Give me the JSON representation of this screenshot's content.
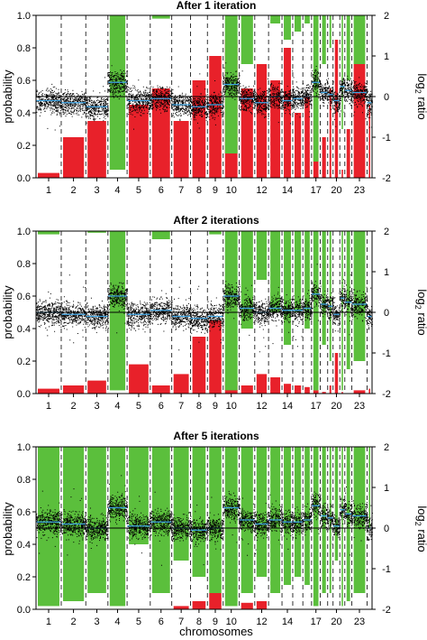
{
  "chart_data": [
    {
      "type": "scatter",
      "title": "After 1 iteration",
      "xlabel": "",
      "ylabel": "probability",
      "ylabel_right": "log2 ratio",
      "ylabel_right_base": "log",
      "ylabel_right_sub": "2",
      "ylabel_right_rest": " ratio",
      "ylim": [
        0,
        1
      ],
      "ylim_right": [
        -2,
        2
      ],
      "y_ticks": [
        "0.0",
        "0.2",
        "0.4",
        "0.6",
        "0.8",
        "1.0"
      ],
      "y_ticks_right": [
        "-2",
        "-1",
        "0",
        "1",
        "2"
      ],
      "x_ticks": [
        "1",
        "2",
        "3",
        "4",
        "5",
        "6",
        "7",
        "8",
        "9",
        "10",
        "12",
        "14",
        "17",
        "20",
        "23"
      ],
      "colors": {
        "loss": "#e8212a",
        "gain": "#5bbf3c",
        "points": "#000000",
        "segments": "#3ea2e0"
      },
      "loss_probability": [
        0.03,
        0.25,
        0.35,
        0.0,
        0.45,
        0.55,
        0.35,
        0.6,
        0.75,
        0.85,
        0.55,
        0.7,
        0.6,
        0.8,
        0.4,
        0.5,
        0.35,
        0.25,
        0.55,
        0.85,
        0.05,
        0.3,
        0.7,
        0.45
      ],
      "gain_probability": [
        0.0,
        0.0,
        0.0,
        0.95,
        0.0,
        0.02,
        0.0,
        0.0,
        0.0,
        0.85,
        0.3,
        0.0,
        0.05,
        0.15,
        0.1,
        0.05,
        0.9,
        0.3,
        0.2,
        0.0,
        0.7,
        0.4,
        0.3,
        0.0
      ],
      "segment_log2_ratio": [
        -0.1,
        -0.15,
        -0.25,
        0.35,
        -0.1,
        -0.05,
        -0.2,
        -0.25,
        -0.2,
        0.3,
        -0.05,
        -0.15,
        0.0,
        -0.1,
        -0.05,
        0.0,
        0.35,
        0.1,
        0.05,
        -0.1,
        0.25,
        0.15,
        0.1,
        -0.15
      ]
    },
    {
      "type": "scatter",
      "title": "After 2 iterations",
      "xlabel": "",
      "ylabel": "probability",
      "ylabel_right": "log2 ratio",
      "ylabel_right_base": "log",
      "ylabel_right_sub": "2",
      "ylabel_right_rest": " ratio",
      "ylim": [
        0,
        1
      ],
      "ylim_right": [
        -2,
        2
      ],
      "y_ticks": [
        "0.0",
        "0.2",
        "0.4",
        "0.6",
        "0.8",
        "1.0"
      ],
      "y_ticks_right": [
        "-2",
        "-1",
        "0",
        "1",
        "2"
      ],
      "x_ticks": [
        "1",
        "2",
        "3",
        "4",
        "5",
        "6",
        "7",
        "8",
        "9",
        "10",
        "12",
        "14",
        "17",
        "20",
        "23"
      ],
      "colors": {
        "loss": "#e8212a",
        "gain": "#5bbf3c",
        "points": "#000000",
        "segments": "#3ea2e0"
      },
      "loss_probability": [
        0.03,
        0.05,
        0.08,
        0.0,
        0.18,
        0.05,
        0.12,
        0.35,
        0.45,
        0.08,
        0.05,
        0.12,
        0.1,
        0.06,
        0.05,
        0.04,
        0.02,
        0.01,
        0.05,
        0.25,
        0.01,
        0.0,
        0.02,
        0.03
      ],
      "gain_probability": [
        0.02,
        0.0,
        0.01,
        0.98,
        0.0,
        0.05,
        0.0,
        0.0,
        0.02,
        0.98,
        0.6,
        0.3,
        0.5,
        0.7,
        0.5,
        0.6,
        0.98,
        0.7,
        0.8,
        0.0,
        0.98,
        0.85,
        0.8,
        0.0
      ],
      "segment_log2_ratio": [
        0.0,
        -0.05,
        -0.1,
        0.4,
        -0.05,
        0.05,
        -0.1,
        -0.15,
        -0.1,
        0.4,
        0.1,
        0.0,
        0.1,
        0.05,
        0.05,
        0.1,
        0.45,
        0.2,
        0.15,
        -0.05,
        0.35,
        0.25,
        0.2,
        -0.1
      ]
    },
    {
      "type": "scatter",
      "title": "After 5 iterations",
      "xlabel": "chromosomes",
      "ylabel": "probability",
      "ylabel_right": "log2 ratio",
      "ylabel_right_base": "log",
      "ylabel_right_sub": "2",
      "ylabel_right_rest": " ratio",
      "ylim": [
        0,
        1
      ],
      "ylim_right": [
        -2,
        2
      ],
      "y_ticks": [
        "0.0",
        "0.2",
        "0.4",
        "0.6",
        "0.8",
        "1.0"
      ],
      "y_ticks_right": [
        "-2",
        "-1",
        "0",
        "1",
        "2"
      ],
      "x_ticks": [
        "1",
        "2",
        "3",
        "4",
        "5",
        "6",
        "7",
        "8",
        "9",
        "10",
        "12",
        "14",
        "17",
        "20",
        "23"
      ],
      "colors": {
        "loss": "#e8212a",
        "gain": "#5bbf3c",
        "points": "#000000",
        "segments": "#3ea2e0"
      },
      "loss_probability": [
        0.0,
        0.0,
        0.0,
        0.0,
        0.0,
        0.0,
        0.02,
        0.05,
        0.1,
        0.0,
        0.04,
        0.05,
        0.0,
        0.0,
        0.0,
        0.0,
        0.0,
        0.0,
        0.0,
        0.0,
        0.0,
        0.0,
        0.0,
        0.0
      ],
      "gain_probability": [
        0.98,
        0.95,
        0.9,
        0.98,
        0.6,
        0.9,
        0.7,
        0.8,
        0.9,
        0.98,
        0.9,
        0.8,
        0.9,
        0.85,
        0.8,
        0.85,
        0.98,
        0.9,
        0.9,
        0.7,
        0.98,
        0.95,
        0.9,
        0.5
      ],
      "segment_log2_ratio": [
        0.15,
        0.1,
        0.0,
        0.5,
        0.05,
        0.15,
        0.0,
        -0.05,
        0.0,
        0.5,
        0.2,
        0.1,
        0.2,
        0.15,
        0.15,
        0.2,
        0.55,
        0.3,
        0.25,
        0.05,
        0.45,
        0.35,
        0.3,
        0.0
      ]
    }
  ]
}
